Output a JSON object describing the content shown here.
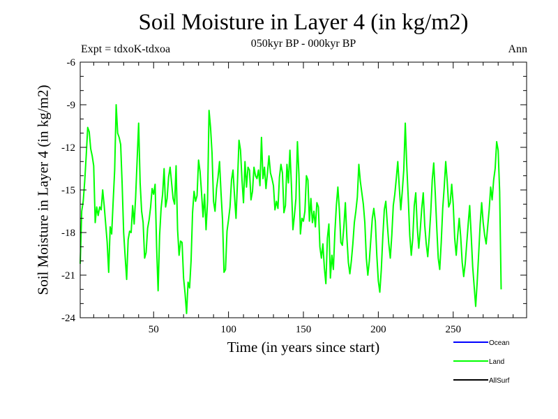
{
  "chart_data": {
    "type": "line",
    "title": "Soil Moisture in Layer 4 (in kg/m2)",
    "subtitle": "050kyr BP - 000kyr BP",
    "expt_label": "Expt = tdxoK-tdxoa",
    "season_label": "Ann",
    "xlabel": "Time (in years since start)",
    "ylabel": "Soil Moisture in Layer 4 (in kg/m2)",
    "xlim": [
      1,
      299
    ],
    "ylim": [
      -24,
      -6
    ],
    "xticks": [
      50,
      100,
      150,
      200,
      250
    ],
    "yticks": [
      -24,
      -21,
      -18,
      -15,
      -12,
      -9,
      -6
    ],
    "grid": false,
    "legend_position": "bottom-right",
    "legend": [
      {
        "name": "Ocean",
        "color": "#0000ff"
      },
      {
        "name": "Land",
        "color": "#00ff00"
      },
      {
        "name": "AllSurf",
        "color": "#000000"
      }
    ],
    "series": [
      {
        "name": "Land",
        "color": "#00ff00",
        "x_start": 1,
        "x_step": 1,
        "values": [
          -20.2,
          -16.5,
          -15.8,
          -14.4,
          -12.6,
          -10.6,
          -10.9,
          -12.1,
          -12.6,
          -13.3,
          -17.3,
          -16.2,
          -16.8,
          -16.2,
          -16.4,
          -15.0,
          -16.1,
          -17.4,
          -18.7,
          -20.8,
          -17.6,
          -18.1,
          -15.8,
          -13.6,
          -9.0,
          -11.0,
          -11.3,
          -11.8,
          -14.6,
          -18.0,
          -19.7,
          -21.3,
          -18.5,
          -17.9,
          -18.0,
          -16.1,
          -17.4,
          -15.5,
          -12.9,
          -10.3,
          -14.5,
          -16.5,
          -17.3,
          -19.8,
          -19.4,
          -17.7,
          -17.1,
          -16.2,
          -14.9,
          -15.3,
          -14.6,
          -19.0,
          -22.1,
          -18.2,
          -16.3,
          -15.3,
          -13.5,
          -16.2,
          -15.6,
          -14.1,
          -13.4,
          -14.5,
          -15.6,
          -16.0,
          -13.3,
          -17.8,
          -19.6,
          -18.6,
          -18.7,
          -21.2,
          -22.3,
          -23.7,
          -21.5,
          -21.9,
          -20.0,
          -16.6,
          -15.1,
          -15.8,
          -15.4,
          -12.9,
          -13.7,
          -15.2,
          -16.9,
          -15.3,
          -17.8,
          -15.8,
          -9.4,
          -10.6,
          -12.4,
          -15.8,
          -16.5,
          -14.9,
          -14.1,
          -13.0,
          -15.2,
          -17.1,
          -20.8,
          -20.6,
          -17.9,
          -17.1,
          -16.2,
          -14.3,
          -13.6,
          -15.4,
          -17.0,
          -14.4,
          -11.5,
          -12.2,
          -14.3,
          -15.9,
          -13.0,
          -14.8,
          -13.4,
          -13.6,
          -15.7,
          -15.1,
          -13.4,
          -14.0,
          -14.2,
          -13.6,
          -14.7,
          -11.3,
          -14.2,
          -13.4,
          -14.9,
          -13.8,
          -12.6,
          -13.8,
          -14.2,
          -14.7,
          -16.4,
          -15.8,
          -16.3,
          -14.1,
          -13.2,
          -13.8,
          -16.6,
          -16.1,
          -13.2,
          -14.5,
          -12.2,
          -14.7,
          -17.8,
          -16.8,
          -15.6,
          -11.6,
          -13.9,
          -18.1,
          -17.0,
          -17.2,
          -16.5,
          -14.0,
          -14.3,
          -17.2,
          -15.6,
          -17.3,
          -16.5,
          -17.6,
          -15.9,
          -16.2,
          -19.0,
          -19.8,
          -18.8,
          -20.5,
          -21.6,
          -18.4,
          -17.4,
          -21.2,
          -19.6,
          -20.6,
          -18.0,
          -16.1,
          -14.8,
          -16.4,
          -18.7,
          -18.9,
          -17.6,
          -15.9,
          -18.3,
          -20.1,
          -20.9,
          -20.0,
          -18.8,
          -17.3,
          -16.5,
          -15.5,
          -13.2,
          -14.4,
          -15.2,
          -16.0,
          -17.3,
          -19.8,
          -21.0,
          -20.0,
          -18.5,
          -17.0,
          -16.3,
          -17.2,
          -19.6,
          -21.4,
          -22.2,
          -20.6,
          -18.3,
          -16.4,
          -15.8,
          -17.4,
          -18.8,
          -19.8,
          -18.2,
          -16.1,
          -15.3,
          -14.2,
          -13.0,
          -14.8,
          -16.4,
          -15.1,
          -13.6,
          -10.3,
          -13.3,
          -15.6,
          -18.2,
          -19.6,
          -18.4,
          -16.1,
          -15.2,
          -17.6,
          -19.1,
          -17.8,
          -16.3,
          -15.2,
          -17.5,
          -18.8,
          -19.7,
          -18.3,
          -16.6,
          -14.3,
          -13.1,
          -15.2,
          -17.6,
          -19.8,
          -20.6,
          -18.7,
          -16.3,
          -14.8,
          -13.0,
          -14.4,
          -16.2,
          -15.9,
          -14.6,
          -16.0,
          -18.4,
          -19.6,
          -18.2,
          -17.0,
          -18.3,
          -20.1,
          -21.1,
          -20.2,
          -18.8,
          -17.4,
          -16.1,
          -18.2,
          -20.4,
          -21.8,
          -23.2,
          -21.5,
          -19.5,
          -17.4,
          -15.9,
          -17.3,
          -18.2,
          -18.8,
          -17.6,
          -16.4,
          -14.8,
          -15.7,
          -14.3,
          -13.5,
          -11.6,
          -12.2,
          -15.1,
          -22.0
        ]
      }
    ]
  }
}
